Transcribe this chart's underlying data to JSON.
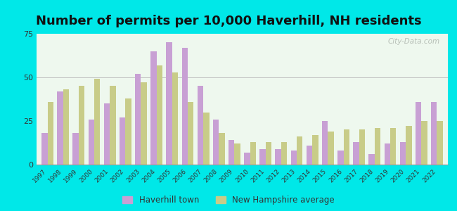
{
  "title": "Number of permits per 10,000 Haverhill, NH residents",
  "years": [
    1997,
    1998,
    1999,
    2000,
    2001,
    2002,
    2003,
    2004,
    2005,
    2006,
    2007,
    2008,
    2009,
    2010,
    2011,
    2012,
    2013,
    2014,
    2015,
    2016,
    2017,
    2018,
    2019,
    2020,
    2021,
    2022
  ],
  "haverhill": [
    18,
    42,
    18,
    26,
    35,
    27,
    52,
    65,
    70,
    67,
    45,
    26,
    14,
    7,
    9,
    9,
    8,
    11,
    25,
    8,
    13,
    6,
    12,
    13,
    36,
    36
  ],
  "nh_avg": [
    36,
    43,
    45,
    49,
    45,
    38,
    47,
    57,
    53,
    36,
    30,
    18,
    12,
    13,
    13,
    13,
    16,
    17,
    19,
    20,
    20,
    21,
    21,
    22,
    25,
    25
  ],
  "haverhill_color": "#c8a0d4",
  "nh_avg_color": "#c8cc88",
  "background_outer": "#00e8e8",
  "background_plot": "#eef8ee",
  "ylim": [
    0,
    75
  ],
  "yticks": [
    0,
    25,
    50,
    75
  ],
  "legend_haverhill": "Haverhill town",
  "legend_nh": "New Hampshire average",
  "title_fontsize": 13,
  "bar_width": 0.38
}
